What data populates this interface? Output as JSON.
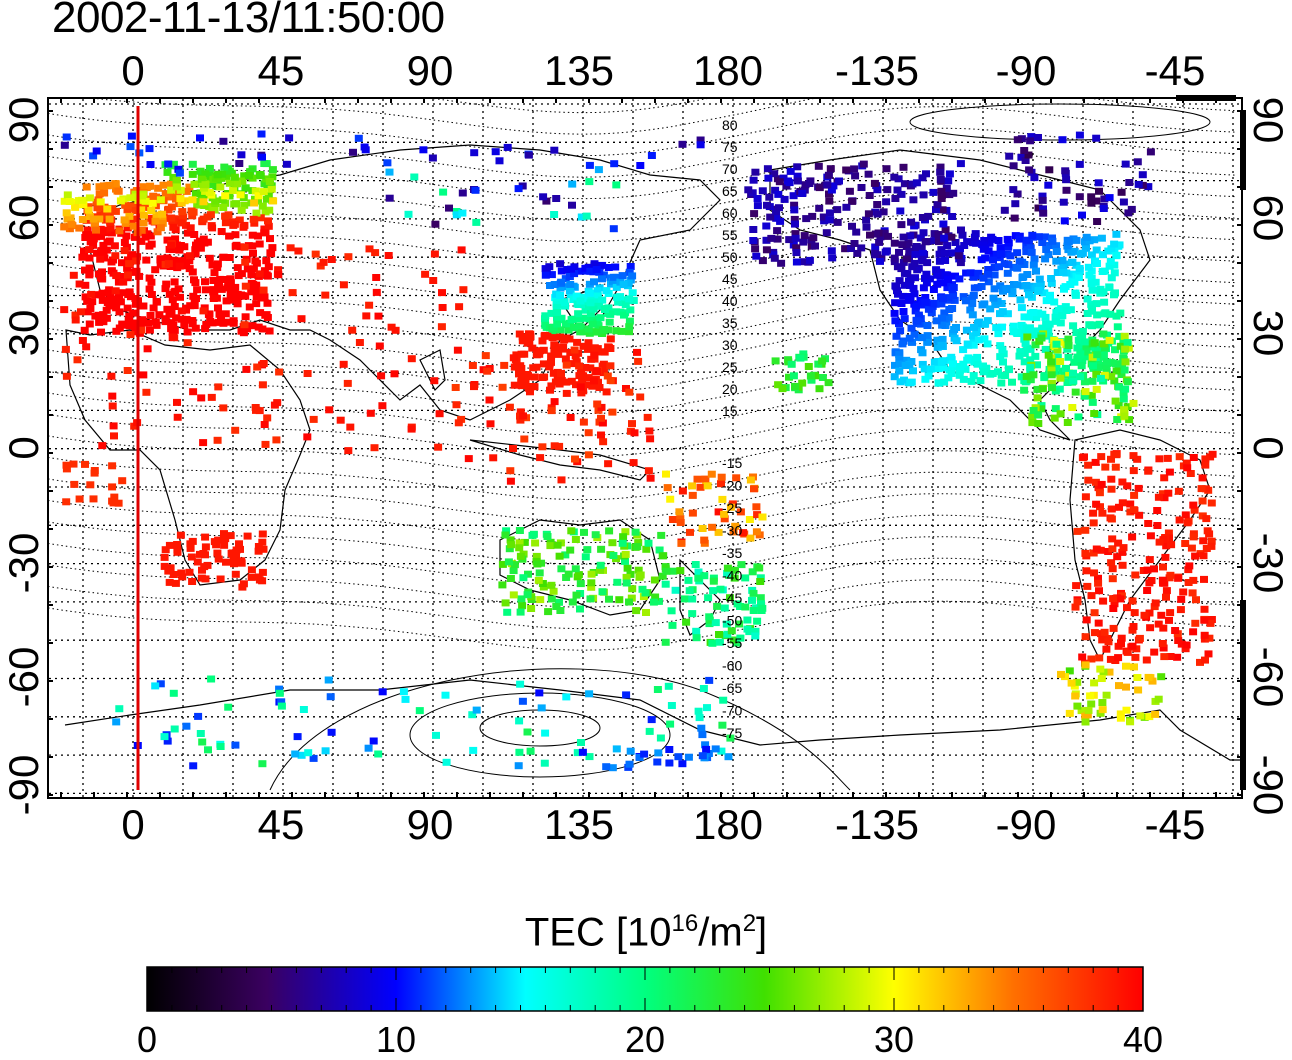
{
  "timestamp": "2002-11-13/11:50:00",
  "map": {
    "lon_ticks_top": [
      "0",
      "45",
      "90",
      "135",
      "180",
      "-135",
      "-90",
      "-45"
    ],
    "lon_ticks_bottom": [
      "0",
      "45",
      "90",
      "135",
      "180",
      "-135",
      "-90",
      "-45"
    ],
    "lat_ticks_left": [
      "90",
      "60",
      "30",
      "0",
      "-30",
      "-60",
      "-90"
    ],
    "lat_ticks_right": [
      "90",
      "60",
      "30",
      "0",
      "-30",
      "-60",
      "-90"
    ],
    "magnetic_latitude_labels": [
      "80",
      "75",
      "70",
      "65",
      "60",
      "55",
      "50",
      "45",
      "40",
      "35",
      "30",
      "25",
      "20",
      "15",
      "-15",
      "-20",
      "-25",
      "-30",
      "-35",
      "-40",
      "-45",
      "-50",
      "-55",
      "-60",
      "-65",
      "-70",
      "-75"
    ],
    "marker_line_color": "#e00000"
  },
  "colorbar": {
    "title_prefix": "TEC  [10",
    "title_exp1": "16",
    "title_mid": "/m",
    "title_exp2": "2",
    "title_suffix": "]",
    "ticks": [
      "0",
      "10",
      "20",
      "30",
      "40"
    ],
    "colors": [
      "#000000",
      "#3a0060",
      "#4000b0",
      "#0000ff",
      "#0080ff",
      "#00ffff",
      "#00ff80",
      "#00e000",
      "#80ff00",
      "#ffff00",
      "#ff8000",
      "#ff0000"
    ]
  },
  "tec_patches": [
    {
      "region": "europe",
      "tec": 38
    },
    {
      "region": "east-asia-north",
      "tec": 10
    },
    {
      "region": "east-asia-south",
      "tec": 38
    },
    {
      "region": "north-america-north",
      "tec": 5
    },
    {
      "region": "north-america-south",
      "tec": 20
    },
    {
      "region": "south-america",
      "tec": 38
    },
    {
      "region": "australia",
      "tec": 23
    },
    {
      "region": "antarctica",
      "tec": 15
    }
  ]
}
